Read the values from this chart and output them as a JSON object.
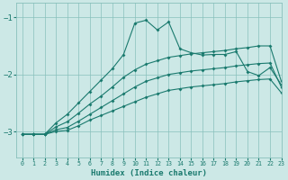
{
  "xlabel": "Humidex (Indice chaleur)",
  "xlim": [
    -0.5,
    23
  ],
  "ylim": [
    -3.45,
    -0.75
  ],
  "yticks": [
    -3,
    -2,
    -1
  ],
  "xticks": [
    0,
    1,
    2,
    3,
    4,
    5,
    6,
    7,
    8,
    9,
    10,
    11,
    12,
    13,
    14,
    15,
    16,
    17,
    18,
    19,
    20,
    21,
    22,
    23
  ],
  "bg_color": "#cce8e6",
  "grid_color": "#88c0bc",
  "line_color": "#1a7a6e",
  "line1_x": [
    0,
    1,
    2,
    3,
    4,
    5,
    6,
    7,
    8,
    9,
    10,
    11,
    12,
    13,
    14,
    15,
    16,
    17,
    18,
    19,
    20,
    21,
    22,
    23
  ],
  "line1_y": [
    -3.05,
    -3.05,
    -3.05,
    -2.85,
    -2.7,
    -2.5,
    -2.3,
    -2.1,
    -1.9,
    -1.65,
    -1.1,
    -1.05,
    -1.22,
    -1.08,
    -1.55,
    -1.62,
    -1.66,
    -1.65,
    -1.65,
    -1.6,
    -1.95,
    -2.02,
    -1.88,
    -2.18
  ],
  "line2_x": [
    0,
    1,
    2,
    3,
    4,
    5,
    6,
    7,
    8,
    9,
    10,
    11,
    12,
    13,
    14,
    15,
    16,
    17,
    18,
    19,
    20,
    21,
    22,
    23
  ],
  "line2_y": [
    -3.05,
    -3.05,
    -3.05,
    -2.92,
    -2.83,
    -2.68,
    -2.52,
    -2.38,
    -2.22,
    -2.05,
    -1.92,
    -1.82,
    -1.76,
    -1.7,
    -1.67,
    -1.64,
    -1.62,
    -1.6,
    -1.58,
    -1.55,
    -1.53,
    -1.5,
    -1.5,
    -2.12
  ],
  "line3_x": [
    0,
    1,
    2,
    3,
    4,
    5,
    6,
    7,
    8,
    9,
    10,
    11,
    12,
    13,
    14,
    15,
    16,
    17,
    18,
    19,
    20,
    21,
    22,
    23
  ],
  "line3_y": [
    -3.05,
    -3.05,
    -3.05,
    -2.97,
    -2.93,
    -2.82,
    -2.7,
    -2.58,
    -2.46,
    -2.34,
    -2.22,
    -2.12,
    -2.06,
    -2.0,
    -1.97,
    -1.94,
    -1.92,
    -1.9,
    -1.88,
    -1.85,
    -1.83,
    -1.81,
    -1.8,
    -2.22
  ],
  "line4_x": [
    0,
    1,
    2,
    3,
    4,
    5,
    6,
    7,
    8,
    9,
    10,
    11,
    12,
    13,
    14,
    15,
    16,
    17,
    18,
    19,
    20,
    21,
    22,
    23
  ],
  "line4_y": [
    -3.05,
    -3.05,
    -3.05,
    -3.0,
    -2.98,
    -2.9,
    -2.8,
    -2.72,
    -2.64,
    -2.56,
    -2.48,
    -2.4,
    -2.34,
    -2.28,
    -2.25,
    -2.22,
    -2.2,
    -2.18,
    -2.16,
    -2.13,
    -2.11,
    -2.09,
    -2.08,
    -2.32
  ]
}
